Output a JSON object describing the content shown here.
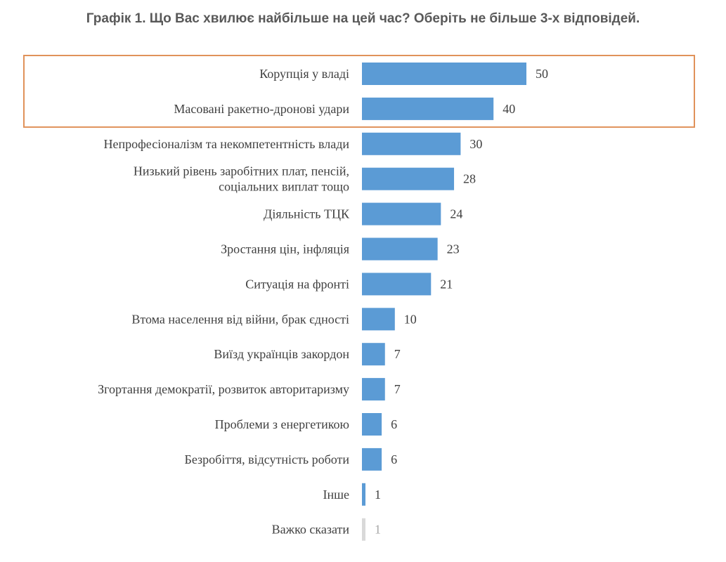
{
  "chart_data": {
    "type": "bar",
    "orientation": "horizontal",
    "title": "Графік 1. Що Вас хвилює найбільше на цей час? Оберіть не більше 3-х відповідей.",
    "categories": [
      [
        "Корупція у владі"
      ],
      [
        "Масовані ракетно-дронові удари"
      ],
      [
        "Непрофесіоналізм та некомпетентність влади"
      ],
      [
        "Низький рівень заробітних плат, пенсій,",
        "соціальних виплат тощо"
      ],
      [
        "Діяльність ТЦК"
      ],
      [
        "Зростання цін, інфляція"
      ],
      [
        "Ситуація на фронті"
      ],
      [
        "Втома населення від війни, брак єдності"
      ],
      [
        "Виїзд українців закордон"
      ],
      [
        "Згортання демократії, розвиток авторитаризму"
      ],
      [
        "Проблеми з енергетикою"
      ],
      [
        "Безробіття, відсутність роботи"
      ],
      [
        "Інше"
      ],
      [
        "Важко сказати"
      ]
    ],
    "values": [
      50,
      40,
      30,
      28,
      24,
      23,
      21,
      10,
      7,
      7,
      6,
      6,
      1,
      1
    ],
    "bar_colors": [
      "#5b9bd5",
      "#5b9bd5",
      "#5b9bd5",
      "#5b9bd5",
      "#5b9bd5",
      "#5b9bd5",
      "#5b9bd5",
      "#5b9bd5",
      "#5b9bd5",
      "#5b9bd5",
      "#5b9bd5",
      "#5b9bd5",
      "#5b9bd5",
      "#d9d9d9"
    ],
    "value_label_colors": [
      "#404040",
      "#404040",
      "#404040",
      "#404040",
      "#404040",
      "#404040",
      "#404040",
      "#404040",
      "#404040",
      "#404040",
      "#404040",
      "#404040",
      "#404040",
      "#a6a6a6"
    ],
    "xlim": [
      0,
      50
    ],
    "grid": false,
    "highlight": {
      "categories_index": [
        0,
        1
      ],
      "border_color": "#e0925a"
    }
  }
}
